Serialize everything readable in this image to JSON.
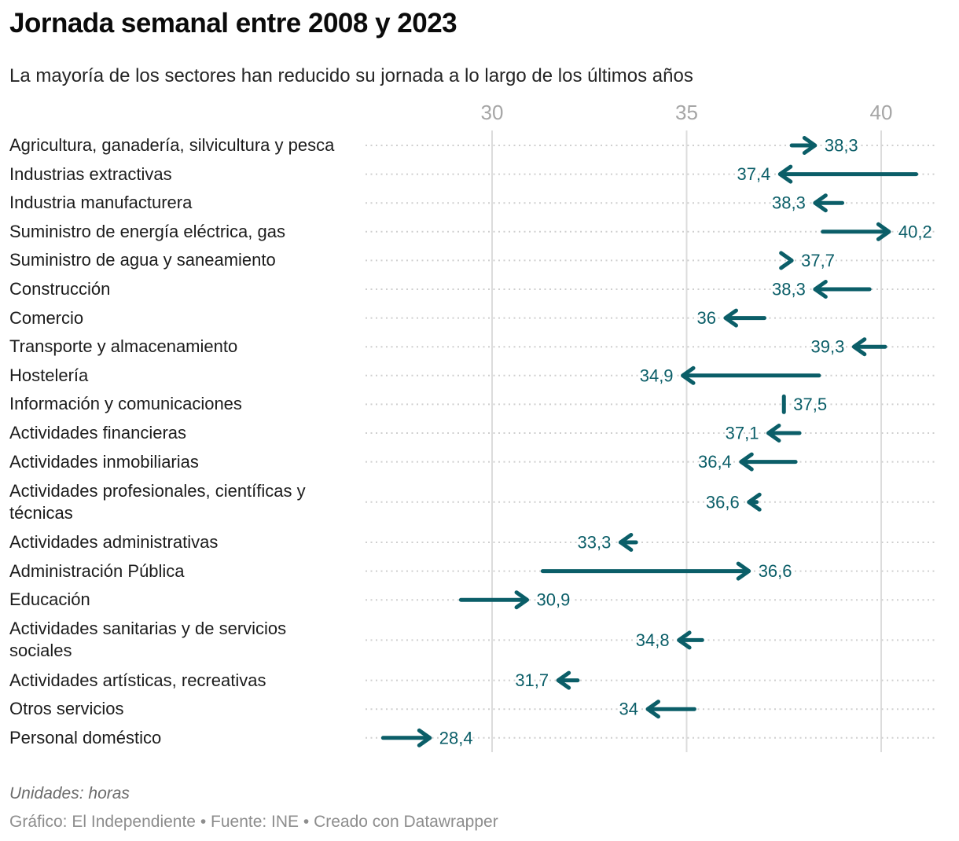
{
  "header": {
    "title": "Jornada semanal entre 2008 y 2023",
    "subtitle": "La mayoría de los sectores han reducido su jornada a lo largo de los últimos años"
  },
  "footer": {
    "notes": "Unidades: horas",
    "byline": "Gráfico: El Independiente • Fuente: INE • Creado con Datawrapper"
  },
  "colors": {
    "accent_teal": "#0b5e68",
    "gridline": "#dcdcdc",
    "dotted_guide": "#cfcfcf",
    "axis_text": "#a6a6a6",
    "category_text": "#1c1c1c"
  },
  "chart_data": {
    "type": "arrow",
    "title": "Jornada semanal entre 2008 y 2023",
    "subtitle": "La mayoría de los sectores han reducido su jornada a lo largo de los últimos años",
    "unit": "horas",
    "xlabel": "",
    "ylabel": "",
    "x_ticks": [
      30,
      35,
      40
    ],
    "xlim": [
      26.7,
      41.4
    ],
    "grid": true,
    "series_meaning": {
      "start": "2008",
      "end": "2023"
    },
    "rows": [
      {
        "label_lines": [
          "Agricultura, ganadería, silvicultura y pesca"
        ],
        "start": 37.7,
        "end": 38.3,
        "end_label": "38,3",
        "style": "arrow"
      },
      {
        "label_lines": [
          "Industrias extractivas"
        ],
        "start": 40.9,
        "end": 37.4,
        "end_label": "37,4",
        "style": "arrow"
      },
      {
        "label_lines": [
          "Industria manufacturera"
        ],
        "start": 39.0,
        "end": 38.3,
        "end_label": "38,3",
        "style": "arrow"
      },
      {
        "label_lines": [
          "Suministro de energía eléctrica, gas"
        ],
        "start": 38.5,
        "end": 40.2,
        "end_label": "40,2",
        "style": "arrow"
      },
      {
        "label_lines": [
          "Suministro de agua y saneamiento"
        ],
        "start": 37.5,
        "end": 37.7,
        "end_label": "37,7",
        "style": "head"
      },
      {
        "label_lines": [
          "Construcción"
        ],
        "start": 39.7,
        "end": 38.3,
        "end_label": "38,3",
        "style": "arrow"
      },
      {
        "label_lines": [
          "Comercio"
        ],
        "start": 37.0,
        "end": 36.0,
        "end_label": "36",
        "style": "arrow"
      },
      {
        "label_lines": [
          "Transporte y almacenamiento"
        ],
        "start": 40.1,
        "end": 39.3,
        "end_label": "39,3",
        "style": "arrow"
      },
      {
        "label_lines": [
          "Hostelería"
        ],
        "start": 38.4,
        "end": 34.9,
        "end_label": "34,9",
        "style": "arrow"
      },
      {
        "label_lines": [
          "Información y comunicaciones"
        ],
        "start": 37.5,
        "end": 37.5,
        "end_label": "37,5",
        "style": "tick"
      },
      {
        "label_lines": [
          "Actividades financieras"
        ],
        "start": 37.9,
        "end": 37.1,
        "end_label": "37,1",
        "style": "arrow"
      },
      {
        "label_lines": [
          "Actividades inmobiliarias"
        ],
        "start": 37.8,
        "end": 36.4,
        "end_label": "36,4",
        "style": "arrow"
      },
      {
        "label_lines": [
          "Actividades profesionales, científicas y",
          "técnicas"
        ],
        "start": 36.8,
        "end": 36.6,
        "end_label": "36,6",
        "style": "arrow"
      },
      {
        "label_lines": [
          "Actividades administrativas"
        ],
        "start": 33.7,
        "end": 33.3,
        "end_label": "33,3",
        "style": "arrow"
      },
      {
        "label_lines": [
          "Administración Pública"
        ],
        "start": 31.3,
        "end": 36.6,
        "end_label": "36,6",
        "style": "arrow"
      },
      {
        "label_lines": [
          "Educación"
        ],
        "start": 29.2,
        "end": 30.9,
        "end_label": "30,9",
        "style": "arrow"
      },
      {
        "label_lines": [
          "Actividades sanitarias y de servicios",
          "sociales"
        ],
        "start": 35.4,
        "end": 34.8,
        "end_label": "34,8",
        "style": "arrow"
      },
      {
        "label_lines": [
          "Actividades artísticas, recreativas"
        ],
        "start": 32.2,
        "end": 31.7,
        "end_label": "31,7",
        "style": "arrow"
      },
      {
        "label_lines": [
          "Otros servicios"
        ],
        "start": 35.2,
        "end": 34.0,
        "end_label": "34",
        "style": "arrow"
      },
      {
        "label_lines": [
          "Personal doméstico"
        ],
        "start": 27.2,
        "end": 28.4,
        "end_label": "28,4",
        "style": "arrow"
      }
    ]
  }
}
